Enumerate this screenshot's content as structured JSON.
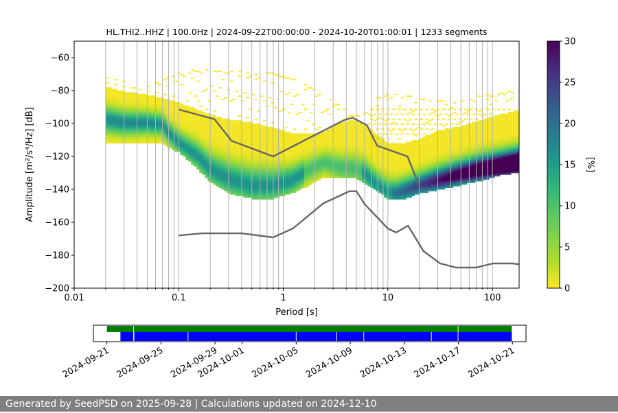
{
  "chart_data": [
    {
      "type": "heatmap",
      "title": "HL.THI2..HHZ | 100.0Hz | 2024-09-22T00:00:00 - 2024-10-20T01:00:01 | 1233 segments",
      "xlabel": "Period [s]",
      "ylabel": "Amplitude [m²/s⁴/Hz] [dB]",
      "xscale": "log",
      "xlim": [
        0.01,
        180
      ],
      "ylim": [
        -200,
        -50
      ],
      "grid": "vertical lines at each log decade sub-tick",
      "x_ticks": [
        0.01,
        0.1,
        1,
        10,
        100
      ],
      "x_tick_labels": [
        "0.01",
        "0.1",
        "1",
        "10",
        "100"
      ],
      "y_ticks": [
        -200,
        -180,
        -160,
        -140,
        -120,
        -100,
        -80,
        -60
      ],
      "y_tick_labels": [
        "−200",
        "−180",
        "−160",
        "−140",
        "−120",
        "−100",
        "−80",
        "−60"
      ],
      "colorbar": {
        "label": "[%]",
        "range": [
          0,
          30
        ],
        "ticks": [
          0,
          5,
          10,
          15,
          20,
          25,
          30
        ],
        "colormap": "viridis_r"
      },
      "mode_curve": {
        "period": [
          0.02,
          0.03,
          0.05,
          0.07,
          0.08,
          0.1,
          0.15,
          0.2,
          0.3,
          0.5,
          0.8,
          1.2,
          1.8,
          2.5,
          3.5,
          5,
          6,
          8,
          10,
          12,
          15,
          20,
          30,
          50,
          80,
          120,
          180
        ],
        "amplitude_db": [
          -98,
          -100,
          -100,
          -101,
          -106,
          -112,
          -120,
          -128,
          -134,
          -138,
          -138,
          -135,
          -128,
          -124,
          -127,
          -128,
          -131,
          -138,
          -142,
          -143,
          -141,
          -138,
          -135,
          -131,
          -128,
          -126,
          -124
        ]
      },
      "band": {
        "period": [
          0.02,
          0.03,
          0.05,
          0.07,
          0.1,
          0.15,
          0.2,
          0.3,
          0.5,
          0.8,
          1.2,
          1.8,
          2.5,
          3.5,
          5,
          6,
          8,
          10,
          12,
          15,
          20,
          30,
          50,
          80,
          120,
          180
        ],
        "upper_db": [
          -78,
          -81,
          -83,
          -85,
          -88,
          -92,
          -95,
          -98,
          -100,
          -103,
          -106,
          -107,
          -105,
          -100,
          -98,
          -101,
          -108,
          -112,
          -113,
          -112,
          -110,
          -105,
          -102,
          -98,
          -95,
          -92
        ],
        "lower_db": [
          -112,
          -113,
          -112,
          -113,
          -118,
          -128,
          -136,
          -143,
          -146,
          -146,
          -143,
          -138,
          -133,
          -133,
          -134,
          -137,
          -142,
          -146,
          -147,
          -146,
          -143,
          -141,
          -138,
          -135,
          -132,
          -130
        ]
      },
      "scatter_bands": {
        "top_curve": {
          "period": [
            0.02,
            0.04,
            0.06,
            0.08,
            0.12,
            0.2,
            0.4,
            0.8,
            1.5,
            3,
            5,
            8,
            12,
            20,
            40,
            80,
            180
          ],
          "amplitude_db": [
            -71,
            -78,
            -76,
            -72,
            -68,
            -68,
            -69,
            -70,
            -75,
            -86,
            -96,
            -84,
            -82,
            -85,
            -87,
            -83,
            -80
          ]
        },
        "upper_lines_db": [
          -92,
          -95,
          -98,
          -101,
          -104,
          -107
        ]
      },
      "nhnm": {
        "period": [
          0.1,
          0.22,
          0.32,
          0.8,
          3.8,
          4.6,
          6.3,
          7.9,
          15.4,
          20
        ],
        "amplitude_db": [
          -91.5,
          -97.4,
          -110.5,
          -120,
          -98,
          -96.5,
          -101,
          -113.5,
          -120,
          -138
        ]
      },
      "nlnm": {
        "period": [
          0.1,
          0.17,
          0.4,
          0.8,
          1.24,
          2.4,
          4.3,
          5.0,
          6.0,
          10.0,
          12.0,
          15.6,
          21.9,
          31.6,
          45,
          70,
          101,
          154,
          180
        ],
        "amplitude_db": [
          -168,
          -166.7,
          -166.7,
          -169.2,
          -163.7,
          -148.6,
          -141.1,
          -141.1,
          -149,
          -163.8,
          -166.2,
          -162.1,
          -177.5,
          -185,
          -187.5,
          -187.5,
          -185,
          -185,
          -185.5
        ]
      }
    },
    {
      "type": "timeline",
      "x_tick_labels": [
        "2024-09-21",
        "2024-09-25",
        "2024-09-29",
        "2024-10-01",
        "2024-10-05",
        "2024-10-09",
        "2024-10-13",
        "2024-10-17",
        "2024-10-21"
      ],
      "x_tick_dates": [
        "2024-09-21",
        "2024-09-25",
        "2024-09-29",
        "2024-10-01",
        "2024-10-05",
        "2024-10-09",
        "2024-10-13",
        "2024-10-17",
        "2024-10-21"
      ],
      "xlim": [
        "2024-09-20",
        "2024-10-22"
      ],
      "available_data": {
        "color": "#008000",
        "segments": [
          [
            "2024-09-21",
            "2024-09-23"
          ],
          [
            "2024-09-23",
            "2024-10-17"
          ],
          [
            "2024-10-17",
            "2024-10-21"
          ]
        ]
      },
      "used_data": {
        "color": "#0000ff",
        "segments": [
          [
            "2024-09-22",
            "2024-09-23"
          ],
          [
            "2024-09-23",
            "2024-10-17"
          ],
          [
            "2024-10-17",
            "2024-10-21"
          ]
        ],
        "gap_marks": [
          "2024-09-23",
          "2024-09-27",
          "2024-10-05",
          "2024-10-08",
          "2024-10-10",
          "2024-10-15"
        ]
      }
    }
  ],
  "footer": {
    "text": "Generated by SeedPSD on 2025-09-28 | Calculations updated on 2024-12-10"
  }
}
